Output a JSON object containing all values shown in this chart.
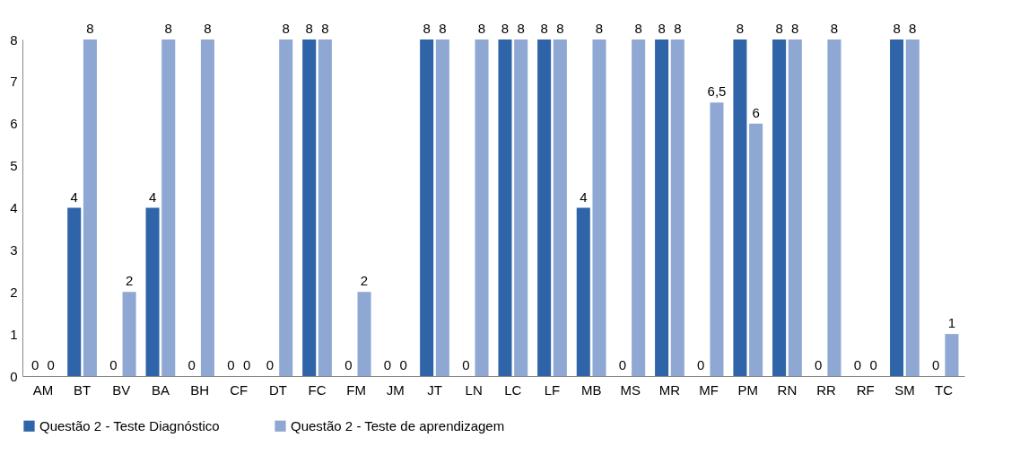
{
  "chart_data": {
    "type": "bar",
    "categories": [
      "AM",
      "BT",
      "BV",
      "BA",
      "BH",
      "CF",
      "DT",
      "FC",
      "FM",
      "JM",
      "JT",
      "LN",
      "LC",
      "LF",
      "MB",
      "MS",
      "MR",
      "MF",
      "PM",
      "RN",
      "RR",
      "RF",
      "SM",
      "TC"
    ],
    "series": [
      {
        "name": "Questão 2 - Teste Diagnóstico",
        "color": "#2f64a8",
        "values": [
          0,
          4,
          0,
          4,
          0,
          0,
          0,
          8,
          0,
          0,
          8,
          0,
          8,
          8,
          4,
          0,
          8,
          0,
          8,
          8,
          0,
          0,
          8,
          0
        ],
        "value_labels": [
          "0",
          "4",
          "0",
          "4",
          "0",
          "0",
          "0",
          "8",
          "0",
          "0",
          "8",
          "0",
          "8",
          "8",
          "4",
          "0",
          "8",
          "0",
          "8",
          "8",
          "0",
          "0",
          "8",
          "0"
        ]
      },
      {
        "name": "Questão 2 - Teste de aprendizagem",
        "color": "#8ea7d3",
        "values": [
          0,
          8,
          2,
          8,
          8,
          0,
          8,
          8,
          2,
          0,
          8,
          8,
          8,
          8,
          8,
          8,
          8,
          6.5,
          6,
          8,
          8,
          0,
          8,
          1
        ],
        "value_labels": [
          "0",
          "8",
          "2",
          "8",
          "8",
          "0",
          "8",
          "8",
          "2",
          "0",
          "8",
          "8",
          "8",
          "8",
          "8",
          "8",
          "8",
          "6,5",
          "6",
          "8",
          "8",
          "0",
          "8",
          "1"
        ]
      }
    ],
    "ylim": [
      0,
      8
    ],
    "yticks": [
      0,
      1,
      2,
      3,
      4,
      5,
      6,
      7,
      8
    ],
    "grid": false,
    "legend": "bottom"
  }
}
